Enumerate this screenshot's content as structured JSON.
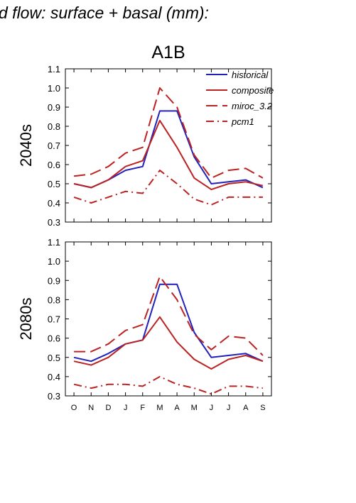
{
  "header_text": "d flow: surface + basal (mm):",
  "scenario_title": "A1B",
  "chart_data": [
    {
      "type": "line",
      "panel_label": "2040s",
      "categories": [
        "O",
        "N",
        "D",
        "J",
        "F",
        "M",
        "A",
        "M",
        "J",
        "J",
        "A",
        "S"
      ],
      "ylim": [
        0.3,
        1.1
      ],
      "yticks": [
        "0.3",
        "0.4",
        "0.5",
        "0.6",
        "0.7",
        "0.8",
        "0.9",
        "1.0",
        "1.1"
      ],
      "grid": false,
      "legend_placement": "top-right",
      "series": [
        {
          "name": "historical",
          "color": "#2222bb",
          "dash": "solid",
          "values": [
            0.5,
            0.48,
            0.52,
            0.57,
            0.59,
            0.88,
            0.88,
            0.64,
            0.5,
            0.51,
            0.52,
            0.48
          ]
        },
        {
          "name": "composite",
          "color": "#bb2222",
          "dash": "solid",
          "values": [
            0.5,
            0.48,
            0.52,
            0.59,
            0.62,
            0.83,
            0.69,
            0.53,
            0.47,
            0.5,
            0.51,
            0.49
          ]
        },
        {
          "name": "miroc_3.2",
          "color": "#bb2222",
          "dash": "longdash",
          "values": [
            0.54,
            0.55,
            0.59,
            0.66,
            0.69,
            1.0,
            0.9,
            0.65,
            0.53,
            0.57,
            0.58,
            0.53
          ]
        },
        {
          "name": "pcm1",
          "color": "#bb2222",
          "dash": "dashdot",
          "values": [
            0.43,
            0.4,
            0.43,
            0.46,
            0.45,
            0.57,
            0.5,
            0.42,
            0.39,
            0.43,
            0.43,
            0.43
          ]
        }
      ]
    },
    {
      "type": "line",
      "panel_label": "2080s",
      "categories": [
        "O",
        "N",
        "D",
        "J",
        "F",
        "M",
        "A",
        "M",
        "J",
        "J",
        "A",
        "S"
      ],
      "xtick_labels": [
        "O",
        "N",
        "D",
        "J",
        "F",
        "M",
        "A",
        "M",
        "J",
        "J",
        "A",
        "S"
      ],
      "ylim": [
        0.3,
        1.1
      ],
      "yticks": [
        "0.3",
        "0.4",
        "0.5",
        "0.6",
        "0.7",
        "0.8",
        "0.9",
        "1.0",
        "1.1"
      ],
      "grid": false,
      "series": [
        {
          "color": "#2222bb",
          "dash": "solid",
          "values": [
            0.5,
            0.48,
            0.52,
            0.57,
            0.59,
            0.88,
            0.88,
            0.63,
            0.5,
            0.51,
            0.52,
            0.48
          ]
        },
        {
          "color": "#bb2222",
          "dash": "solid",
          "values": [
            0.48,
            0.46,
            0.5,
            0.57,
            0.59,
            0.71,
            0.58,
            0.49,
            0.44,
            0.49,
            0.51,
            0.48
          ]
        },
        {
          "color": "#bb2222",
          "dash": "longdash",
          "values": [
            0.53,
            0.53,
            0.57,
            0.64,
            0.67,
            0.92,
            0.8,
            0.62,
            0.54,
            0.61,
            0.6,
            0.51
          ]
        },
        {
          "color": "#bb2222",
          "dash": "dashdot",
          "values": [
            0.36,
            0.34,
            0.36,
            0.36,
            0.35,
            0.4,
            0.36,
            0.34,
            0.31,
            0.35,
            0.35,
            0.34
          ]
        }
      ]
    }
  ]
}
